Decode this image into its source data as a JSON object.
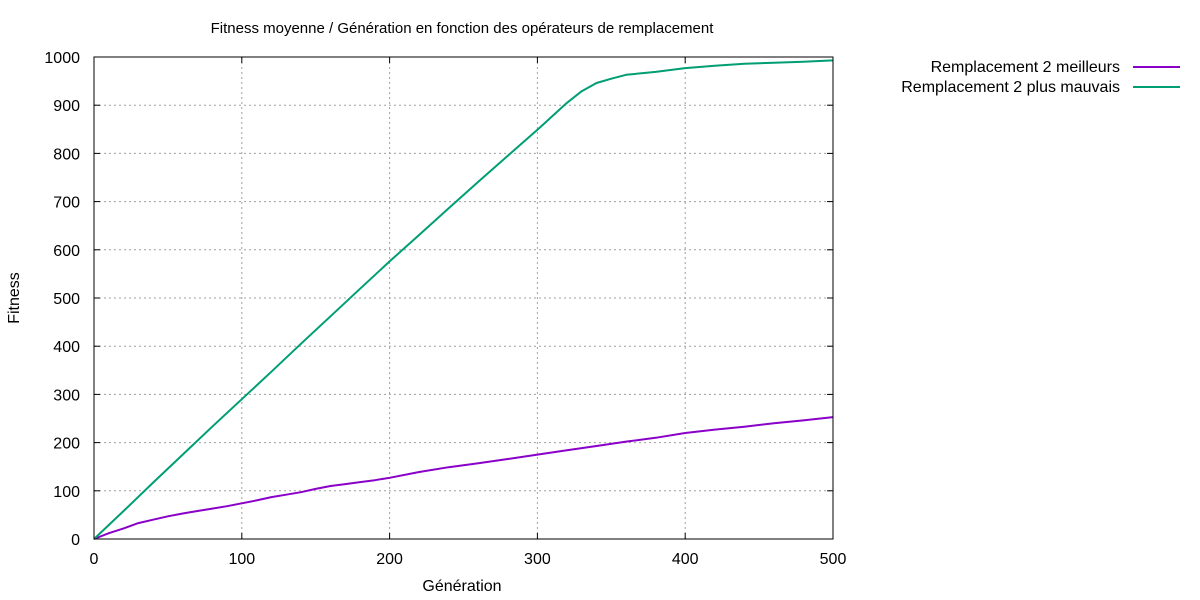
{
  "chart_data": {
    "type": "line",
    "title": "Fitness moyenne / Génération en fonction des opérateurs de remplacement",
    "xlabel": "Génération",
    "ylabel": "Fitness",
    "xlim": [
      0,
      500
    ],
    "ylim": [
      0,
      1000
    ],
    "xticks": [
      0,
      100,
      200,
      300,
      400,
      500
    ],
    "yticks": [
      0,
      100,
      200,
      300,
      400,
      500,
      600,
      700,
      800,
      900,
      1000
    ],
    "grid": true,
    "legend_position": "top-right-outside",
    "series": [
      {
        "name": "Remplacement 2 meilleurs",
        "color": "#8a00c8",
        "x": [
          0,
          10,
          20,
          30,
          40,
          50,
          60,
          70,
          80,
          90,
          100,
          110,
          120,
          130,
          140,
          150,
          160,
          170,
          180,
          190,
          200,
          220,
          240,
          260,
          280,
          300,
          320,
          340,
          360,
          380,
          400,
          420,
          440,
          460,
          480,
          500
        ],
        "y": [
          0,
          12,
          22,
          33,
          40,
          47,
          53,
          58,
          63,
          68,
          74,
          80,
          87,
          92,
          97,
          104,
          110,
          114,
          118,
          122,
          127,
          139,
          149,
          157,
          166,
          175,
          184,
          193,
          202,
          210,
          220,
          227,
          233,
          240,
          246,
          253
        ]
      },
      {
        "name": "Remplacement 2 plus mauvais",
        "color": "#009e73",
        "x": [
          0,
          20,
          40,
          60,
          80,
          100,
          120,
          140,
          160,
          180,
          200,
          220,
          240,
          260,
          280,
          300,
          310,
          320,
          330,
          340,
          350,
          360,
          380,
          400,
          420,
          440,
          460,
          480,
          500
        ],
        "y": [
          0,
          58,
          117,
          175,
          233,
          290,
          347,
          405,
          462,
          519,
          576,
          631,
          686,
          741,
          795,
          849,
          877,
          905,
          929,
          946,
          955,
          963,
          969,
          977,
          982,
          986,
          988,
          990,
          993
        ]
      }
    ]
  }
}
